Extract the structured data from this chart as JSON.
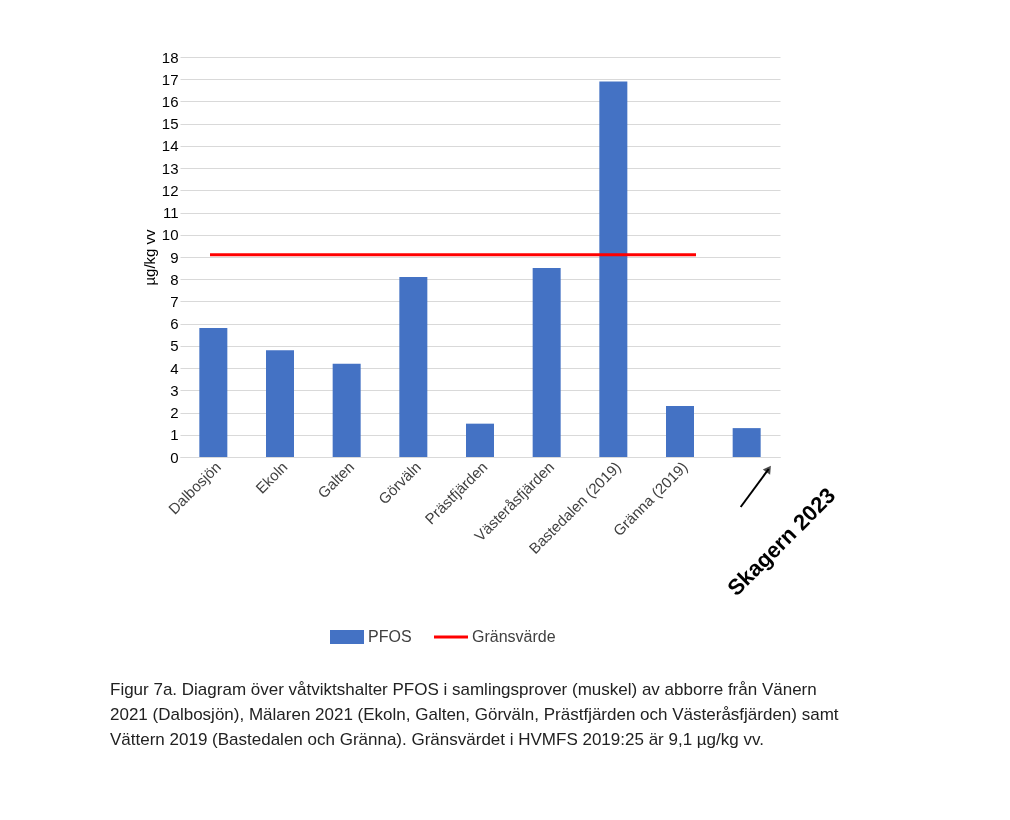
{
  "chart_data": {
    "type": "bar",
    "ylabel": "µg/kg vv",
    "categories": [
      "Dalbosjön",
      "Ekoln",
      "Galten",
      "Görväln",
      "Prästfjärden",
      "Västeråsfjärden",
      "Bastedalen (2019)",
      "Gränna (2019)",
      null
    ],
    "series": [
      {
        "name": "PFOS",
        "color": "#4472c4",
        "values": [
          5.8,
          4.8,
          4.2,
          8.1,
          1.5,
          8.5,
          16.9,
          2.3,
          1.3
        ]
      }
    ],
    "ylim": [
      0,
      18
    ],
    "yticks": [
      0,
      1,
      2,
      3,
      4,
      5,
      6,
      7,
      8,
      9,
      10,
      11,
      12,
      13,
      14,
      15,
      16,
      17,
      18
    ],
    "ref_lines": [
      {
        "axis": "y",
        "value": 9.1,
        "label": "Gränsvärde",
        "color": "#ff0000"
      }
    ],
    "grid": "y",
    "legend": "bottom",
    "annotations": [
      "Skagern 2023",
      "Figur 7a. Diagram över våtviktshalter PFOS i samlingsprover (muskel) av abborre från Vänern 2021 (Dalbosjön), Mälaren 2021 (Ekoln, Galten, Görväln, Prästfjärden och Västeråsfjärden) samt Vättern 2019 (Bastedalen och Gränna). Gränsvärdet i HVMFS 2019:25 är 9,1 µg/kg vv."
    ]
  }
}
